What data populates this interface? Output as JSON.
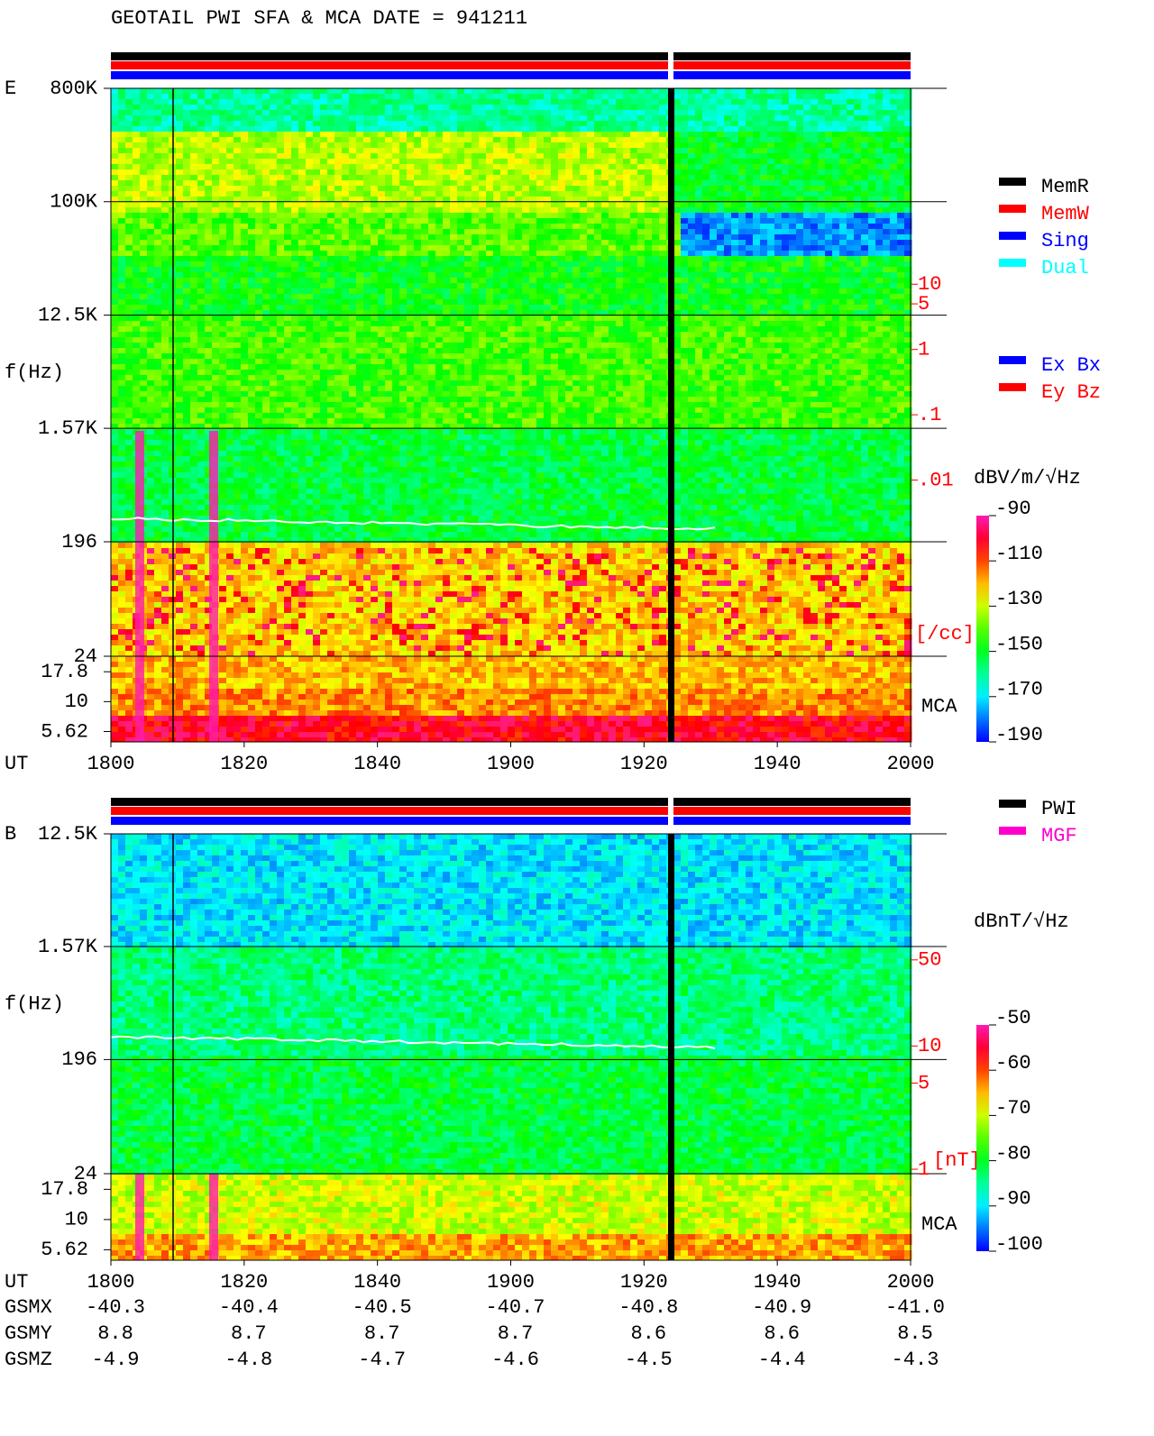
{
  "title": "GEOTAIL  PWI SFA & MCA   DATE = 941211",
  "chart_data": [
    {
      "type": "spectrogram",
      "panel": "E",
      "y_label": "f(Hz)",
      "x_label": "UT",
      "log_y": true,
      "ylim": [
        24,
        800000
      ],
      "yticks": [
        {
          "value": 800000,
          "label": "800K"
        },
        {
          "value": 100000,
          "label": "100K"
        },
        {
          "value": 12500,
          "label": "12.5K"
        },
        {
          "value": 1570,
          "label": "1.57K"
        },
        196,
        24
      ],
      "mca_label": "MCA",
      "mca_ylim": [
        4.6,
        24
      ],
      "mca_yticks": [
        17.8,
        10,
        5.62
      ],
      "y2_label": "[/cc]",
      "y2_color": "#ff0000",
      "y2lim": [
        2e-05,
        10000
      ],
      "y2ticks": [
        10,
        5,
        1,
        {
          "value": 0.1,
          "label": ".1"
        },
        {
          "value": 0.01,
          "label": ".01"
        }
      ],
      "xticks": [
        "1800",
        "1820",
        "1840",
        "1900",
        "1920",
        "1940",
        "2000"
      ],
      "colorbar": {
        "label": "dBV/m/√Hz",
        "lim": [
          -190,
          -90
        ],
        "ticks": [
          -90,
          -110,
          -130,
          -150,
          -170,
          -190
        ]
      },
      "legend": [
        {
          "name": "MemR",
          "color": "#000000"
        },
        {
          "name": "MemW",
          "color": "#ff0000"
        },
        {
          "name": "Sing",
          "color": "#0000ff"
        },
        {
          "name": "Dual",
          "color": "#00ffff"
        }
      ],
      "legend2": [
        {
          "name": "Ex Bx",
          "color": "#0000ff"
        },
        {
          "name": "Ey Bz",
          "color": "#ff0000"
        }
      ]
    },
    {
      "type": "spectrogram",
      "panel": "B",
      "y_label": "f(Hz)",
      "x_label": "UT",
      "log_y": true,
      "ylim": [
        24,
        12500
      ],
      "yticks": [
        {
          "value": 12500,
          "label": "12.5K"
        },
        {
          "value": 1570,
          "label": "1.57K"
        },
        196,
        24
      ],
      "mca_label": "MCA",
      "mca_ylim": [
        4.6,
        24
      ],
      "mca_yticks": [
        17.8,
        10,
        5.62
      ],
      "y2_label": "[nT]",
      "y2_color": "#ff0000",
      "y2lim": [
        0.92,
        527
      ],
      "y2ticks": [
        50,
        10,
        5,
        1
      ],
      "xticks": [
        "1800",
        "1820",
        "1840",
        "1900",
        "1920",
        "1940",
        "2000"
      ],
      "colorbar": {
        "label": "dBnT/√Hz",
        "lim": [
          -100,
          -50
        ],
        "ticks": [
          -50,
          -60,
          -70,
          -80,
          -90,
          -100
        ]
      },
      "legend": [
        {
          "name": "PWI",
          "color": "#000000"
        },
        {
          "name": "MGF",
          "color": "#ff00cc"
        }
      ]
    }
  ],
  "orbit": {
    "rows": [
      {
        "label": "GSMX",
        "values": [
          "-40.3",
          "-40.4",
          "-40.5",
          "-40.7",
          "-40.8",
          "-40.9",
          "-41.0"
        ]
      },
      {
        "label": "GSMY",
        "values": [
          "8.8",
          "8.7",
          "8.7",
          "8.7",
          "8.6",
          "8.6",
          "8.5"
        ]
      },
      {
        "label": "GSMZ",
        "values": [
          "-4.9",
          "-4.8",
          "-4.7",
          "-4.6",
          "-4.5",
          "-4.4",
          "-4.3"
        ]
      }
    ]
  }
}
